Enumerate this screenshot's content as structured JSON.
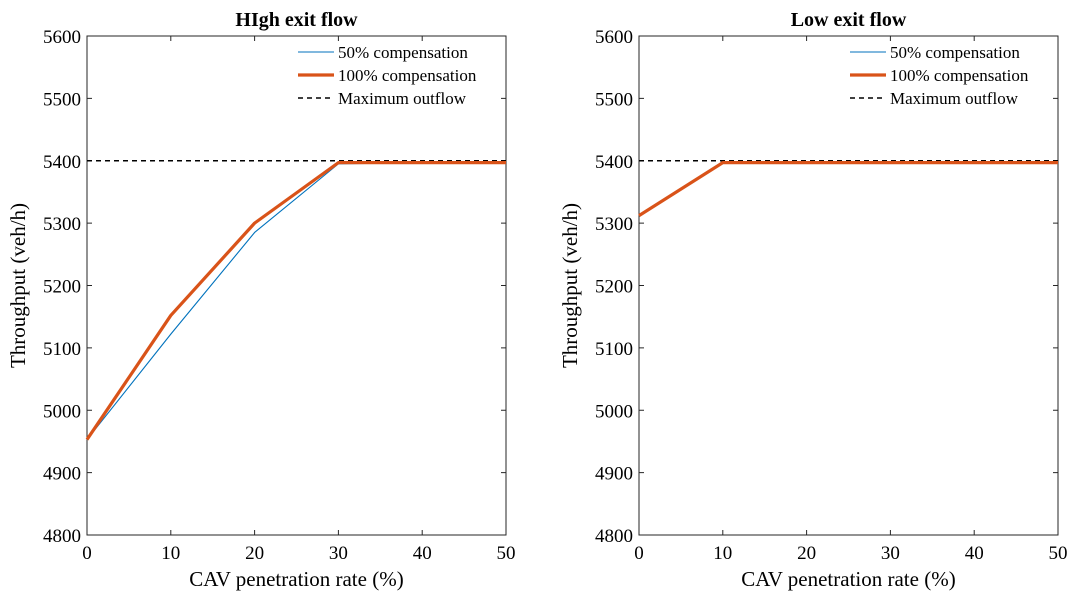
{
  "chart_data": [
    {
      "type": "line",
      "title": "HIgh exit flow",
      "xlabel": "CAV penetration rate (%)",
      "ylabel": "Throughput (veh/h)",
      "xlim": [
        0,
        50
      ],
      "ylim": [
        4800,
        5600
      ],
      "xticks": [
        0,
        10,
        20,
        30,
        40,
        50
      ],
      "yticks": [
        4800,
        4900,
        5000,
        5100,
        5200,
        5300,
        5400,
        5500,
        5600
      ],
      "grid": false,
      "legend_position": "top-right",
      "series": [
        {
          "name": "50% compensation",
          "color": "#0072BD",
          "style": "solid",
          "x": [
            0,
            10,
            20,
            30,
            40,
            50
          ],
          "y": [
            4953,
            5122,
            5285,
            5395,
            5397,
            5397
          ]
        },
        {
          "name": "100% compensation",
          "color": "#D95319",
          "style": "solid",
          "x": [
            0,
            10,
            20,
            30,
            40,
            50
          ],
          "y": [
            4953,
            5152,
            5300,
            5397,
            5397,
            5397
          ]
        },
        {
          "name": "Maximum outflow",
          "color": "#000000",
          "style": "dashed",
          "x": [
            0,
            50
          ],
          "y": [
            5400,
            5400
          ]
        }
      ]
    },
    {
      "type": "line",
      "title": "Low exit flow",
      "xlabel": "CAV penetration rate (%)",
      "ylabel": "Throughput (veh/h)",
      "xlim": [
        0,
        50
      ],
      "ylim": [
        4800,
        5600
      ],
      "xticks": [
        0,
        10,
        20,
        30,
        40,
        50
      ],
      "yticks": [
        4800,
        4900,
        5000,
        5100,
        5200,
        5300,
        5400,
        5500,
        5600
      ],
      "grid": false,
      "legend_position": "top-right",
      "series": [
        {
          "name": "50% compensation",
          "color": "#0072BD",
          "style": "solid",
          "x": [
            0,
            10,
            20,
            30,
            40,
            50
          ],
          "y": [
            5312,
            5397,
            5397,
            5397,
            5397,
            5397
          ]
        },
        {
          "name": "100% compensation",
          "color": "#D95319",
          "style": "solid",
          "x": [
            0,
            10,
            20,
            30,
            40,
            50
          ],
          "y": [
            5312,
            5397,
            5397,
            5397,
            5397,
            5397
          ]
        },
        {
          "name": "Maximum outflow",
          "color": "#000000",
          "style": "dashed",
          "x": [
            0,
            50
          ],
          "y": [
            5400,
            5400
          ]
        }
      ]
    }
  ]
}
